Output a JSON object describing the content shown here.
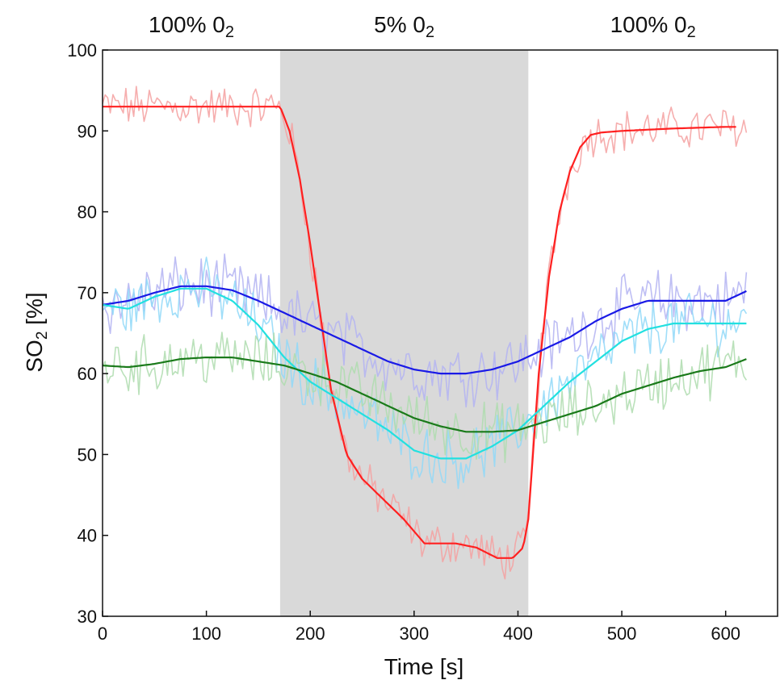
{
  "chart_data": {
    "type": "line",
    "xlabel": "Time [s]",
    "ylabel_main": "SO",
    "ylabel_sub": "2",
    "ylabel_rest": " [%]",
    "xlim": [
      0,
      650
    ],
    "ylim": [
      30,
      100
    ],
    "x_ticks": [
      0,
      100,
      200,
      300,
      400,
      500,
      600
    ],
    "y_ticks": [
      30,
      40,
      50,
      60,
      70,
      80,
      90,
      100
    ],
    "grid": false,
    "phases": [
      {
        "label_main": "100% 0",
        "label_sub": "2",
        "x_start": 0,
        "x_end": 171,
        "shaded": false,
        "shade_color": "#d9d9d9"
      },
      {
        "label_main": "5% 0",
        "label_sub": "2",
        "x_start": 171,
        "x_end": 410,
        "shaded": true,
        "shade_color": "#d9d9d9"
      },
      {
        "label_main": "100% 0",
        "label_sub": "2",
        "x_start": 410,
        "x_end": 650,
        "shaded": false,
        "shade_color": "#d9d9d9"
      }
    ],
    "series": [
      {
        "color": "#ff2020",
        "raw_color": "#f5a0a0",
        "noise": 2.2,
        "x": [
          0,
          20,
          60,
          100,
          140,
          160,
          171,
          180,
          190,
          200,
          210,
          220,
          235,
          250,
          270,
          290,
          310,
          330,
          340,
          360,
          380,
          395,
          405,
          410,
          420,
          430,
          440,
          450,
          460,
          470,
          480,
          500,
          550,
          600,
          610
        ],
        "y": [
          93,
          93,
          93,
          93,
          93,
          93,
          93,
          90,
          84,
          76,
          67,
          58,
          50,
          47,
          44.5,
          42,
          39,
          39,
          39,
          38.5,
          37.2,
          37.2,
          38.5,
          42,
          60,
          72,
          80,
          85,
          88,
          89.5,
          89.8,
          90,
          90.3,
          90.5,
          90.5
        ]
      },
      {
        "color": "#1a1ae6",
        "raw_color": "#b3b3f2",
        "noise": 3.2,
        "x": [
          0,
          25,
          50,
          75,
          100,
          125,
          150,
          175,
          200,
          225,
          250,
          275,
          300,
          325,
          350,
          375,
          400,
          425,
          450,
          475,
          500,
          525,
          550,
          575,
          600,
          620
        ],
        "y": [
          68.5,
          69,
          70,
          70.8,
          70.8,
          70.3,
          69,
          67.5,
          66,
          64.5,
          63,
          61.5,
          60.5,
          60,
          60,
          60.5,
          61.5,
          63,
          64.5,
          66.5,
          68,
          69,
          69,
          69,
          69,
          70.2
        ]
      },
      {
        "color": "#22e0e0",
        "raw_color": "#8fd8f8",
        "noise": 3.0,
        "x": [
          0,
          25,
          50,
          75,
          100,
          125,
          150,
          175,
          200,
          225,
          250,
          275,
          300,
          325,
          350,
          375,
          400,
          425,
          450,
          475,
          500,
          525,
          550,
          575,
          600,
          620
        ],
        "y": [
          68.5,
          68,
          69.5,
          70.5,
          70.5,
          69,
          66,
          62,
          59,
          57,
          55,
          53,
          50.5,
          49.5,
          49.5,
          51,
          53,
          56,
          59,
          61.5,
          64,
          65.5,
          66.2,
          66.2,
          66.2,
          66.2
        ]
      },
      {
        "color": "#1a7a1a",
        "raw_color": "#aedcae",
        "noise": 3.0,
        "x": [
          0,
          25,
          50,
          75,
          100,
          125,
          150,
          175,
          200,
          225,
          250,
          275,
          300,
          325,
          350,
          375,
          400,
          425,
          450,
          475,
          500,
          525,
          550,
          575,
          600,
          620
        ],
        "y": [
          61,
          60.8,
          61.2,
          61.8,
          62,
          62,
          61.5,
          61,
          60,
          59,
          57.5,
          56,
          54.5,
          53.5,
          52.8,
          52.8,
          53,
          54,
          55,
          56,
          57.5,
          58.5,
          59.5,
          60.3,
          60.8,
          61.8
        ]
      }
    ]
  }
}
